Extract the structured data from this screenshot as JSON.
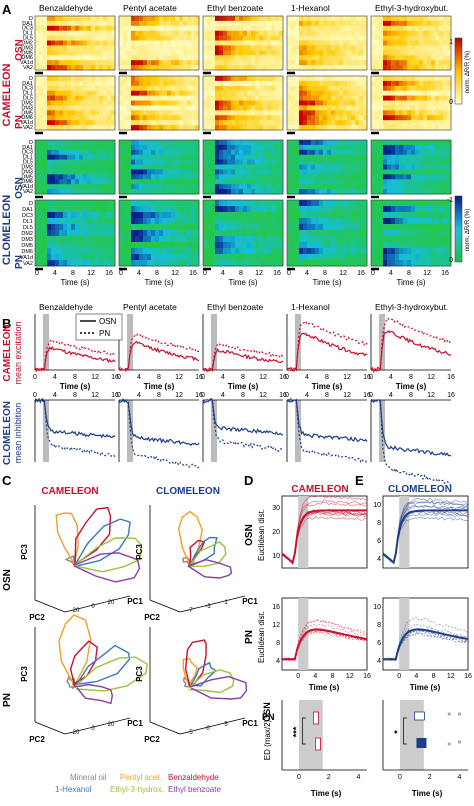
{
  "panels": {
    "A": "A",
    "B": "B",
    "C": "C",
    "D": "D",
    "E": "E"
  },
  "odors": [
    "Benzaldehyde",
    "Pentyl acetate",
    "Ethyl benzoate",
    "1-Hexanol",
    "Ethyl-3-hydroxybut."
  ],
  "glomeruli_cameleon": [
    "D",
    "DA1",
    "DC3",
    "DL1",
    "DL5",
    "DM2",
    "DM3",
    "DM5",
    "DM6",
    "VA1d",
    "VA2"
  ],
  "glomeruli_clomeleon": [
    "D",
    "DA1",
    "DC3",
    "DL1",
    "DL5",
    "DM2",
    "DM3",
    "DM5",
    "DM6",
    "VA1d",
    "VA2"
  ],
  "sensor": {
    "cameleon": "CAMELEON",
    "clomeleon": "CLOMELEON"
  },
  "cell": {
    "osn": "OSN",
    "pn": "PN"
  },
  "heatmap": {
    "colorbar_label": "norm. ΔR/R (%)",
    "cam_top": "1",
    "cam_bottom": "0",
    "clo_top": "-1",
    "clo_bottom": "0",
    "time_label": "Time (s)",
    "ticks": [
      "0",
      "4",
      "8",
      "12",
      "16"
    ]
  },
  "panelB": {
    "legend": {
      "osn": "OSN",
      "pn": "PN"
    },
    "ylabel_exc": "mean excitation",
    "ylabel_inh": "mean inhibition",
    "time_label": "Time (s)",
    "ticks": [
      "0",
      "4",
      "8",
      "12",
      "16"
    ]
  },
  "panelC": {
    "pc1": "PC1",
    "pc2": "PC2",
    "pc3": "PC3",
    "ticks_cam": [
      "-20",
      "0",
      "20"
    ],
    "ticks_clo": [
      "-7",
      "-3",
      "1"
    ],
    "ticks_clo_pn": [
      "-5",
      "0",
      "5"
    ],
    "legend": [
      {
        "label": "Mineral oil",
        "color": "#888888"
      },
      {
        "label": "Pentyl acet.",
        "color": "#f0a020"
      },
      {
        "label": "Benzaldehyde",
        "color": "#c8102e"
      },
      {
        "label": "1-Hexanol",
        "color": "#3a78c2"
      },
      {
        "label": "Ethyl-3-hydrox.",
        "color": "#9bc23c"
      },
      {
        "label": "Ethyl benzoate",
        "color": "#8a3ea8"
      }
    ]
  },
  "panelD": {
    "title": "CAMELEON",
    "ylabel": "Euclidean dist.",
    "osn_yticks": [
      "10",
      "20",
      "30"
    ],
    "pn_yticks": [
      "4",
      "8",
      "12",
      "16"
    ],
    "xticks": [
      "0",
      "4",
      "8",
      "12",
      "16"
    ],
    "time_label": "Time (s)",
    "ed_label": "ED (max/2)",
    "sig": "***",
    "box_xticks": [
      "0",
      "2",
      "4"
    ]
  },
  "panelE": {
    "title": "CLOMELEON",
    "osn_yticks": [
      "4",
      "6",
      "8",
      "10"
    ],
    "pn_yticks": [
      "4",
      "6",
      "8",
      "10"
    ],
    "xticks": [
      "0",
      "4",
      "8",
      "12",
      "16"
    ],
    "time_label": "Time (s)",
    "sig": "*",
    "box_xticks": [
      "0",
      "2",
      "4"
    ]
  },
  "colors": {
    "cameleon": "#c8102e",
    "clomeleon": "#1f3c88"
  }
}
